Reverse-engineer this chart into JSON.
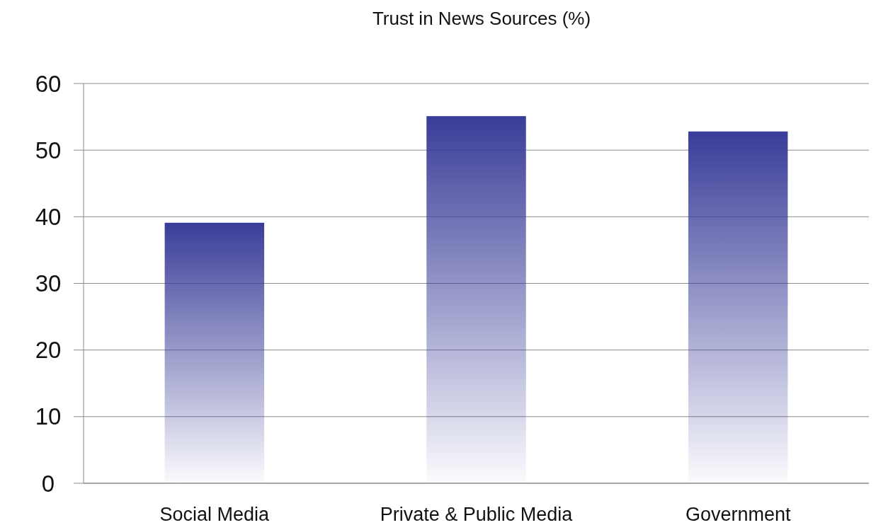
{
  "chart_data": {
    "type": "bar",
    "title": "Trust in News Sources (%)",
    "categories": [
      "Social Media",
      "Private & Public Media",
      "Government"
    ],
    "values": [
      39.1,
      55.1,
      52.8
    ],
    "color": "#3a3d98",
    "ylim": [
      0,
      60
    ],
    "yticks": [
      0,
      10,
      20,
      30,
      40,
      50,
      60
    ],
    "grid": "y"
  }
}
